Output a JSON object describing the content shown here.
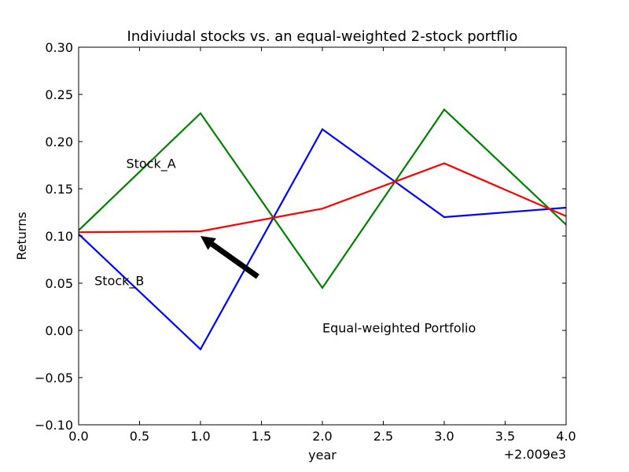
{
  "chart_data": {
    "type": "line",
    "title": "Indiviudal stocks vs. an equal-weighted 2-stock portflio",
    "xlabel": "year",
    "ylabel": "Returns",
    "x_offset_label": "+2.009e3",
    "xlim": [
      0.0,
      4.0
    ],
    "ylim": [
      -0.1,
      0.3
    ],
    "xticks": [
      "0.0",
      "0.5",
      "1.0",
      "1.5",
      "2.0",
      "2.5",
      "3.0",
      "3.5",
      "4.0"
    ],
    "yticks": [
      "−0.10",
      "−0.05",
      "0.00",
      "0.05",
      "0.10",
      "0.15",
      "0.20",
      "0.25",
      "0.30"
    ],
    "grid": false,
    "x": [
      0,
      1,
      2,
      3,
      4
    ],
    "series": [
      {
        "key": "stock-b",
        "color": "#0000ff",
        "values": [
          0.102,
          -0.02,
          0.213,
          0.12,
          0.13
        ]
      },
      {
        "key": "stock-a",
        "color": "#008000",
        "values": [
          0.106,
          0.23,
          0.045,
          0.234,
          0.112
        ]
      },
      {
        "key": "portfolio",
        "color": "#ff0000",
        "values": [
          0.104,
          0.105,
          0.129,
          0.177,
          0.121
        ]
      }
    ],
    "annotations": [
      {
        "key": "stock-a",
        "text": "Stock_A",
        "x": 0.39,
        "y": 0.172
      },
      {
        "key": "stock-b",
        "text": "Stock_B",
        "x": 0.13,
        "y": 0.048
      },
      {
        "key": "portfolio",
        "text": "Equal-weighted Portfolio",
        "x": 2.0,
        "y": -0.002
      }
    ],
    "arrow": {
      "from": [
        1.47,
        0.057
      ],
      "to": [
        1.0,
        0.1
      ]
    }
  }
}
